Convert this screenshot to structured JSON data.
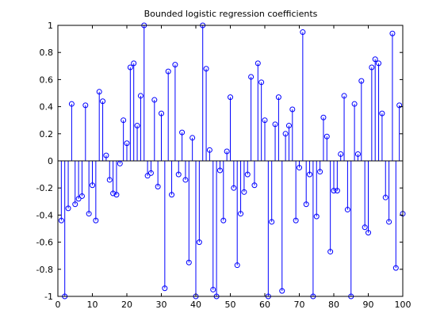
{
  "chart_data": {
    "type": "stem",
    "title": "Bounded logistic regression coefficients",
    "xlabel": "",
    "ylabel": "",
    "xlim": [
      0,
      100
    ],
    "ylim": [
      -1,
      1
    ],
    "xticks": [
      0,
      10,
      20,
      30,
      40,
      50,
      60,
      70,
      80,
      90,
      100
    ],
    "yticks": [
      -1,
      -0.8,
      -0.6,
      -0.4,
      -0.2,
      0,
      0.2,
      0.4,
      0.6,
      0.8,
      1
    ],
    "xtick_labels": [
      "0",
      "10",
      "20",
      "30",
      "40",
      "50",
      "60",
      "70",
      "80",
      "90",
      "100"
    ],
    "ytick_labels": [
      "-1",
      "-0.8",
      "-0.6",
      "-0.4",
      "-0.2",
      "0",
      "0.2",
      "0.4",
      "0.6",
      "0.8",
      "1"
    ],
    "grid": false,
    "color": "#0000ff",
    "marker": "circle",
    "x": [
      1,
      2,
      3,
      4,
      5,
      6,
      7,
      8,
      9,
      10,
      11,
      12,
      13,
      14,
      15,
      16,
      17,
      18,
      19,
      20,
      21,
      22,
      23,
      24,
      25,
      26,
      27,
      28,
      29,
      30,
      31,
      32,
      33,
      34,
      35,
      36,
      37,
      38,
      39,
      40,
      41,
      42,
      43,
      44,
      45,
      46,
      47,
      48,
      49,
      50,
      51,
      52,
      53,
      54,
      55,
      56,
      57,
      58,
      59,
      60,
      61,
      62,
      63,
      64,
      65,
      66,
      67,
      68,
      69,
      70,
      71,
      72,
      73,
      74,
      75,
      76,
      77,
      78,
      79,
      80,
      81,
      82,
      83,
      84,
      85,
      86,
      87,
      88,
      89,
      90,
      91,
      92,
      93,
      94,
      95,
      96,
      97,
      98,
      99,
      100
    ],
    "y": [
      -0.44,
      -1.0,
      -0.35,
      0.42,
      -0.32,
      -0.28,
      -0.26,
      0.41,
      -0.39,
      -0.18,
      -0.44,
      0.51,
      0.44,
      0.04,
      -0.14,
      -0.24,
      -0.25,
      -0.02,
      0.3,
      0.13,
      0.69,
      0.72,
      0.26,
      0.48,
      1.0,
      -0.11,
      -0.09,
      0.45,
      -0.19,
      0.35,
      -0.94,
      0.66,
      -0.25,
      0.71,
      -0.1,
      0.21,
      -0.14,
      -0.75,
      0.17,
      -1.0,
      -0.6,
      1.0,
      0.68,
      0.08,
      -0.95,
      -1.0,
      -0.07,
      -0.44,
      0.07,
      0.47,
      -0.2,
      -0.77,
      -0.39,
      -0.23,
      -0.1,
      0.62,
      -0.18,
      0.72,
      0.58,
      0.3,
      -1.0,
      -0.45,
      0.27,
      0.47,
      -0.96,
      0.2,
      0.26,
      0.38,
      -0.44,
      -0.05,
      0.95,
      -0.32,
      -0.1,
      -1.0,
      -0.41,
      -0.08,
      0.32,
      0.18,
      -0.67,
      -0.22,
      -0.22,
      0.05,
      0.48,
      -0.36,
      -1.0,
      0.42,
      0.05,
      0.59,
      -0.49,
      -0.53,
      0.69,
      0.75,
      0.72,
      0.35,
      -0.27,
      -0.45,
      0.94,
      -0.79,
      0.41,
      -0.39
    ]
  }
}
